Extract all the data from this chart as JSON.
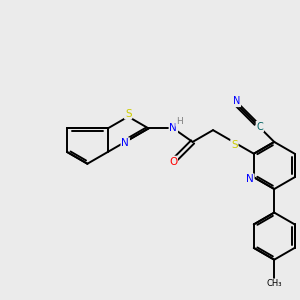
{
  "background_color": "#ebebeb",
  "bond_color": "#000000",
  "atom_colors": {
    "S": "#cccc00",
    "N": "#0000ff",
    "O": "#ff0000",
    "H": "#808080",
    "C_cyan": "#006060"
  },
  "lw": 1.4,
  "font_size": 7.5,
  "fig_size": [
    3.0,
    3.0
  ],
  "dpi": 100
}
